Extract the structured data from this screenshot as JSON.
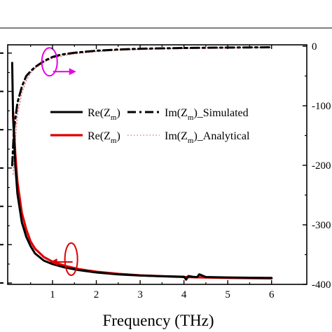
{
  "chart_data": {
    "type": "line",
    "xlabel": "Frequency (THz)",
    "xlim": [
      0,
      6
    ],
    "x_ticks": [
      "1",
      "2",
      "3",
      "4",
      "5",
      "6"
    ],
    "y_right_ticks": [
      "0",
      "-100",
      "-200",
      "-300",
      "-400"
    ],
    "y_right_lim": [
      -400,
      0
    ],
    "y_left_lim": [
      0,
      1
    ],
    "legend_placement": "center",
    "series": [
      {
        "name": "Re(Zm)",
        "legend_main": "Re(Z",
        "legend_sub": "m",
        "legend_tail": ")",
        "axis": "left",
        "style": "solid",
        "color": "#000000",
        "x": [
          0.08,
          0.1,
          0.15,
          0.2,
          0.3,
          0.4,
          0.5,
          0.6,
          0.8,
          1.0,
          1.3,
          1.6,
          2.0,
          2.5,
          3.0,
          3.5,
          4.0,
          4.05,
          4.1,
          4.2,
          4.3,
          4.35,
          4.5,
          5.0,
          5.5,
          6.0
        ],
        "y": [
          0.93,
          0.7,
          0.5,
          0.38,
          0.26,
          0.2,
          0.16,
          0.13,
          0.1,
          0.085,
          0.07,
          0.06,
          0.05,
          0.042,
          0.037,
          0.034,
          0.032,
          0.02,
          0.035,
          0.032,
          0.03,
          0.042,
          0.031,
          0.029,
          0.028,
          0.027
        ]
      },
      {
        "name": "Im(Zm)_Simulated",
        "legend_main": "Im(Z",
        "legend_sub": "m",
        "legend_tail": ")_Simulated",
        "axis": "right",
        "style": "dashdot",
        "color": "#000000",
        "x": [
          0.08,
          0.12,
          0.2,
          0.3,
          0.4,
          0.5,
          0.6,
          0.8,
          1.0,
          1.2,
          1.5,
          2.0,
          2.5,
          3.0,
          3.5,
          4.0,
          4.5,
          5.0,
          5.5,
          6.0
        ],
        "y": [
          -200,
          -140,
          -95,
          -68,
          -50,
          -42,
          -35,
          -25,
          -18,
          -14,
          -11,
          -7.5,
          -5.5,
          -4.2,
          -3.5,
          -3,
          -2.6,
          -2.2,
          -2,
          -1.8
        ]
      },
      {
        "name": "Re(Zm)",
        "legend_main": "Re(Z",
        "legend_sub": "m",
        "legend_tail": ")",
        "axis": "left",
        "style": "solid-thick",
        "color": "#e00000",
        "x": [
          0.1,
          0.15,
          0.2,
          0.3,
          0.4,
          0.5,
          0.6,
          0.8,
          1.0,
          1.3,
          1.6,
          2.0,
          2.5,
          3.0,
          3.5,
          4.0,
          4.5,
          5.0,
          5.5,
          6.0
        ],
        "y": [
          0.72,
          0.55,
          0.43,
          0.3,
          0.23,
          0.18,
          0.15,
          0.115,
          0.095,
          0.077,
          0.064,
          0.053,
          0.044,
          0.038,
          0.034,
          0.031,
          0.029,
          0.027,
          0.026,
          0.025
        ]
      },
      {
        "name": "Im(Zm)_Analytical",
        "legend_main": "Im(Z",
        "legend_sub": "m",
        "legend_tail": ")_Analytical",
        "axis": "right",
        "style": "dotted",
        "color": "#f08080",
        "x": [
          0.1,
          0.15,
          0.2,
          0.3,
          0.4,
          0.5,
          0.6,
          0.8,
          1.0,
          1.3,
          1.6,
          2.0,
          2.5,
          3.0,
          3.5,
          4.0,
          4.5,
          5.0,
          5.5,
          6.0
        ],
        "y": [
          -215,
          -160,
          -115,
          -78,
          -58,
          -45,
          -37,
          -27,
          -20,
          -15,
          -12,
          -9,
          -6.8,
          -5.4,
          -4.5,
          -3.9,
          -3.3,
          -2.9,
          -2.6,
          -2.3
        ]
      }
    ],
    "annotations": [
      {
        "type": "ellipse-arrow",
        "target": "right axis",
        "color": "#e600e6",
        "at_x": 0.98,
        "at_y_right": -18
      },
      {
        "type": "ellipse-arrow",
        "target": "left axis",
        "color": "#e00000",
        "at_x": 1.65,
        "at_y_left": 0.07
      }
    ]
  }
}
